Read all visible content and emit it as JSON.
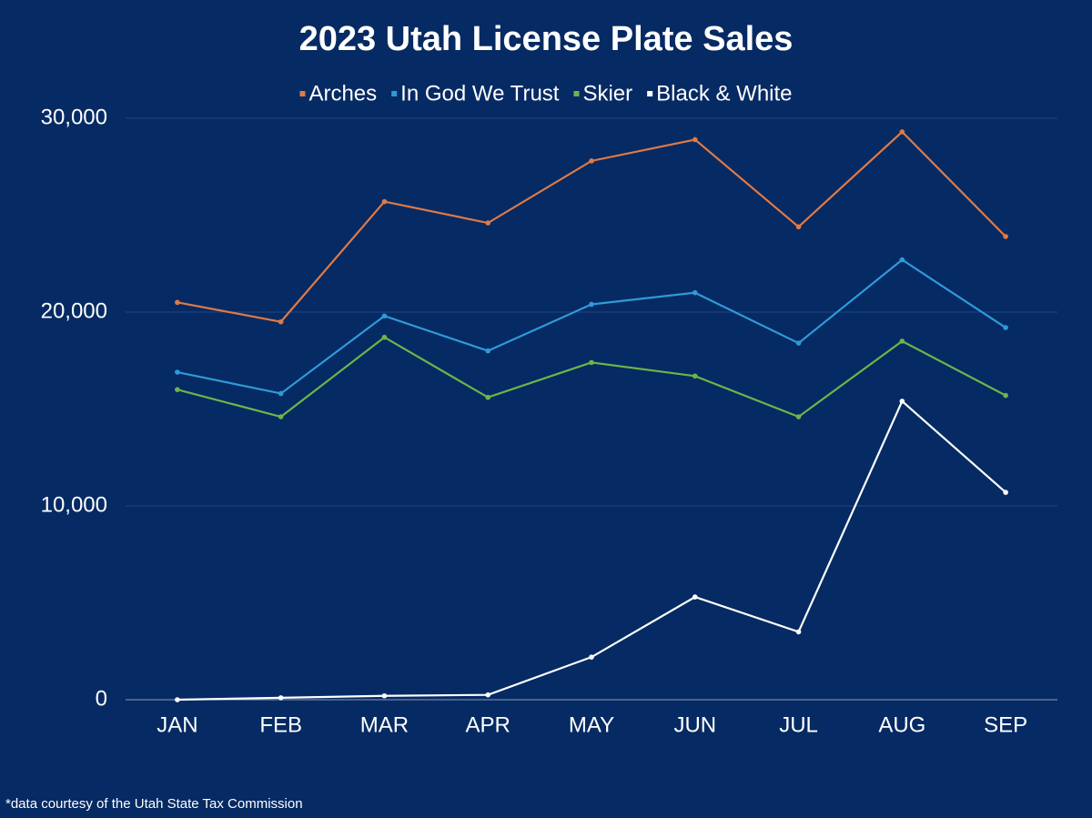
{
  "chart_data": {
    "type": "line",
    "title": "2023 Utah License Plate Sales",
    "categories": [
      "JAN",
      "FEB",
      "MAR",
      "APR",
      "MAY",
      "JUN",
      "JUL",
      "AUG",
      "SEP"
    ],
    "series": [
      {
        "name": "Arches",
        "color": "#e07a45",
        "values": [
          20500,
          19500,
          25700,
          24600,
          27800,
          28900,
          24400,
          29300,
          23900
        ]
      },
      {
        "name": "In God We Trust",
        "color": "#2f9ad8",
        "values": [
          16900,
          15800,
          19800,
          18000,
          20400,
          21000,
          18400,
          22700,
          19200
        ]
      },
      {
        "name": "Skier",
        "color": "#6cb54a",
        "values": [
          16000,
          14600,
          18700,
          15600,
          17400,
          16700,
          14600,
          18500,
          15700
        ]
      },
      {
        "name": "Black & White",
        "color": "#ffffff",
        "values": [
          0,
          100,
          200,
          250,
          2200,
          5300,
          3500,
          15400,
          10700
        ]
      }
    ],
    "ylim": [
      0,
      30000
    ],
    "yticks": [
      0,
      {
        "value": 10000,
        "label": "10,000"
      },
      {
        "value": 20000,
        "label": "20,000"
      },
      {
        "value": 30000,
        "label": "30,000"
      }
    ],
    "grid": true,
    "legend": "top",
    "footnote": "*data courtesy of the Utah State Tax Commission"
  }
}
